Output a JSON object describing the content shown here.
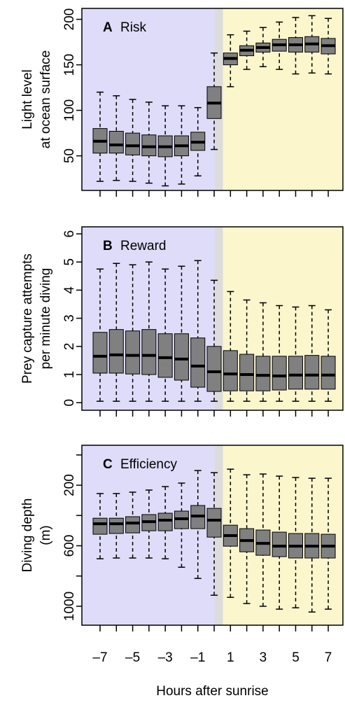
{
  "chart_data": [
    {
      "type": "box",
      "panel_letter": "A",
      "title": "Risk",
      "ylabel": [
        "Light level",
        "at ocean surface"
      ],
      "ylim": [
        12,
        212
      ],
      "yticks": [
        50,
        100,
        150,
        200
      ],
      "night_color": "#dedcf8",
      "twilight_color": "#dcdcdc",
      "day_color": "#fbf6cc",
      "box_color": "#808080",
      "boxes": {
        "min": [
          22,
          23,
          22,
          20,
          17,
          19,
          28,
          57,
          126,
          145,
          148,
          145,
          140,
          141,
          140
        ],
        "q1": [
          53,
          53,
          51,
          50,
          49,
          50,
          56,
          91,
          150,
          160,
          164,
          165,
          164,
          164,
          162
        ],
        "median": [
          66,
          62,
          61,
          60,
          60,
          61,
          65,
          108,
          157,
          166,
          169,
          172,
          172,
          173,
          171
        ],
        "q3": [
          80,
          77,
          75,
          73,
          72,
          72,
          76,
          126,
          163,
          171,
          174,
          178,
          180,
          181,
          179
        ],
        "max": [
          120,
          116,
          112,
          109,
          105,
          105,
          103,
          163,
          183,
          187,
          191,
          197,
          202,
          204,
          201
        ]
      }
    },
    {
      "type": "box",
      "panel_letter": "B",
      "title": "Reward",
      "ylabel": [
        "Prey capture attempts",
        "per minute diving"
      ],
      "ylim": [
        -0.27,
        6.25
      ],
      "yticks": [
        0,
        1,
        2,
        3,
        4,
        5,
        6
      ],
      "night_color": "#dedcf8",
      "twilight_color": "#dcdcdc",
      "day_color": "#fbf6cc",
      "box_color": "#808080",
      "boxes": {
        "min": [
          0.05,
          0.05,
          0.05,
          0.05,
          0.05,
          0.05,
          0.05,
          0.05,
          0.05,
          0.05,
          0.05,
          0.05,
          0.05,
          0.05,
          0.05
        ],
        "q1": [
          1.05,
          1.05,
          1.02,
          1.0,
          0.9,
          0.8,
          0.55,
          0.4,
          0.42,
          0.42,
          0.42,
          0.45,
          0.48,
          0.48,
          0.48
        ],
        "median": [
          1.65,
          1.7,
          1.68,
          1.68,
          1.6,
          1.55,
          1.3,
          1.1,
          1.02,
          1.0,
          0.97,
          0.95,
          0.98,
          0.98,
          0.98
        ],
        "q3": [
          2.5,
          2.6,
          2.55,
          2.6,
          2.45,
          2.45,
          2.3,
          2.0,
          1.85,
          1.72,
          1.65,
          1.65,
          1.65,
          1.68,
          1.65
        ],
        "max": [
          4.75,
          4.95,
          4.9,
          5.0,
          4.75,
          4.85,
          5.05,
          4.35,
          3.95,
          3.65,
          3.55,
          3.45,
          3.4,
          3.45,
          3.3
        ]
      }
    },
    {
      "type": "box",
      "panel_letter": "C",
      "title": "Efficiency",
      "ylabel": [
        "Diving depth",
        "(m)"
      ],
      "xlabel": "Hours after sunrise",
      "categories": [
        "–7",
        null,
        "–5",
        null,
        "–3",
        null,
        "–1",
        null,
        "1",
        null,
        "3",
        null,
        "5",
        null,
        "7"
      ],
      "ylim": [
        1125,
        -64
      ],
      "yticks": [
        {
          "value": 0,
          "label": null
        },
        200,
        {
          "value": 400,
          "label": null
        },
        600,
        {
          "value": 800,
          "label": null
        },
        1000
      ],
      "night_color": "#dedcf8",
      "twilight_color": "#dcdcdc",
      "day_color": "#fbf6cc",
      "box_color": "#808080",
      "boxes": {
        "min": [
          255,
          255,
          246,
          232,
          209,
          186,
          103,
          117,
          94,
          131,
          126,
          140,
          149,
          154,
          154
        ],
        "q1": [
          418,
          418,
          408,
          394,
          385,
          371,
          334,
          353,
          464,
          487,
          496,
          510,
          519,
          519,
          524
        ],
        "median": [
          455,
          455,
          450,
          441,
          431,
          422,
          404,
          431,
          533,
          566,
          584,
          603,
          603,
          603,
          603
        ],
        "q3": [
          524,
          519,
          515,
          501,
          501,
          487,
          487,
          543,
          603,
          640,
          663,
          672,
          681,
          681,
          681
        ],
        "max": [
          686,
          681,
          681,
          681,
          686,
          742,
          816,
          927,
          941,
          982,
          1000,
          1019,
          1010,
          1038,
          1019
        ]
      }
    }
  ]
}
